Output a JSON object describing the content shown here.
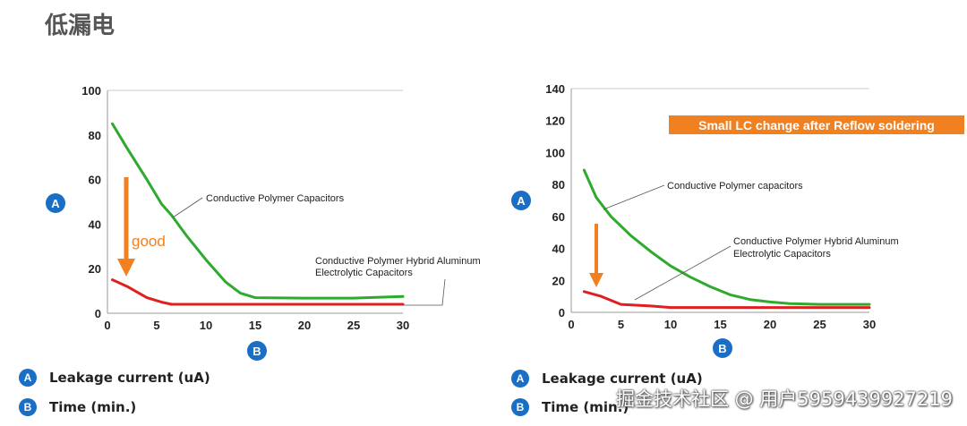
{
  "page_title": "低漏电",
  "colors": {
    "green": "#2eaa2e",
    "red": "#e02020",
    "orange": "#f08020",
    "badge": "#1a6fc4"
  },
  "badges": {
    "a": "A",
    "b": "B"
  },
  "legends": {
    "a_text": "Leakage current (uA)",
    "b_text": "Time (min.)"
  },
  "watermark": "掘金技术社区 @ 用户5959439927219",
  "chart_data": [
    {
      "type": "line",
      "x_ticks": [
        0,
        5,
        10,
        15,
        20,
        25,
        30
      ],
      "y_ticks": [
        0,
        20,
        40,
        60,
        80,
        100
      ],
      "xlim": [
        0,
        30
      ],
      "ylim": [
        0,
        100
      ],
      "series": [
        {
          "name": "Conductive Polymer Capacitors",
          "color": "#2eaa2e",
          "x": [
            0.5,
            2,
            4,
            5.5,
            6.5,
            8,
            10,
            12,
            13.5,
            15,
            20,
            25,
            30
          ],
          "y": [
            85,
            74,
            60,
            49,
            44,
            35,
            24,
            14,
            9,
            7,
            6.8,
            6.8,
            7.5
          ]
        },
        {
          "name": "Conductive Polymer Hybrid Aluminum Electrolytic Capacitors",
          "color": "#e02020",
          "x": [
            0.5,
            2,
            4,
            5.5,
            6.5,
            10,
            15,
            20,
            25,
            30
          ],
          "y": [
            15,
            12,
            7,
            5,
            4,
            4,
            4,
            4,
            4,
            4
          ]
        }
      ],
      "annotations": {
        "green_label": "Conductive Polymer Capacitors",
        "red_label_line1": "Conductive Polymer Hybrid Aluminum",
        "red_label_line2": "Electrolytic Capacitors",
        "good": "good"
      }
    },
    {
      "type": "line",
      "x_ticks": [
        0,
        5,
        10,
        15,
        20,
        25,
        30
      ],
      "y_ticks": [
        0,
        20,
        40,
        60,
        80,
        100,
        120,
        140
      ],
      "xlim": [
        0,
        30
      ],
      "ylim": [
        0,
        140
      ],
      "series": [
        {
          "name": "Conductive Polymer capacitors",
          "color": "#2eaa2e",
          "x": [
            1.3,
            2.5,
            4,
            6,
            8,
            10,
            12,
            14,
            16,
            18,
            20,
            22,
            25,
            30
          ],
          "y": [
            89,
            72,
            60,
            48,
            38,
            29,
            22,
            16,
            11,
            8,
            6.5,
            5.5,
            5,
            5
          ]
        },
        {
          "name": "Conductive Polymer Hybrid Aluminum Electrolytic Capacitors",
          "color": "#e02020",
          "x": [
            1.3,
            3,
            5,
            8,
            10,
            15,
            20,
            25,
            30
          ],
          "y": [
            13,
            10,
            5,
            4,
            3,
            3,
            3,
            3,
            3
          ]
        }
      ],
      "annotations": {
        "banner": "Small LC change after Reflow soldering",
        "green_label": "Conductive Polymer capacitors",
        "red_label_line1": "Conductive Polymer Hybrid Aluminum",
        "red_label_line2": "Electrolytic Capacitors"
      }
    }
  ]
}
